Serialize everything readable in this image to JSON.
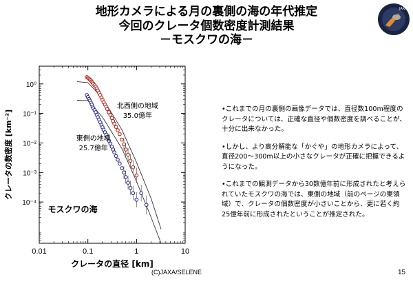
{
  "header": {
    "title_line_1": "地形カメラによる月の裏側の海の年代推定",
    "title_line_2": "今回のクレータ個数密度計測結果",
    "title_line_3": "－モスクワの海－"
  },
  "logo": {
    "text": "JAXA",
    "colors": {
      "ring": "#1a2440",
      "body": "#b9aa8f",
      "flame": "#e28a2c"
    }
  },
  "chart_data": {
    "type": "scatter",
    "title": "",
    "xlabel": "クレータの直径 [km]",
    "ylabel": "クレータの数密度 [km⁻²]",
    "x_scale": "log",
    "y_scale": "log",
    "xlim": [
      0.01,
      10
    ],
    "ylim": [
      4e-06,
      4
    ],
    "x_ticks": [
      0.01,
      0.1,
      1,
      10
    ],
    "x_tick_labels": [
      "0.01",
      "0.1",
      "1",
      "10"
    ],
    "y_ticks": [
      0.0001,
      0.001,
      0.01,
      0.1,
      1
    ],
    "y_tick_labels": [
      "10⁻⁴",
      "10⁻³",
      "10⁻²",
      "10⁻¹",
      "10⁰"
    ],
    "annotations": [
      {
        "id": "northwest",
        "line1": "北西側の地域",
        "line2": "35.0億年",
        "x": 1.05,
        "y": 0.15
      },
      {
        "id": "east",
        "line1": "東側の地域",
        "line2": "25.7億年",
        "x": 0.13,
        "y": 0.012
      }
    ],
    "region_label": {
      "text": "モスクワの海",
      "x": 0.015,
      "y": 4.5e-05
    },
    "series": [
      {
        "id": "northwest",
        "color": "#b32418",
        "x": [
          0.095,
          0.1,
          0.105,
          0.11,
          0.115,
          0.12,
          0.125,
          0.13,
          0.137,
          0.145,
          0.152,
          0.16,
          0.17,
          0.18,
          0.19,
          0.2,
          0.21,
          0.225,
          0.24,
          0.25,
          0.27,
          0.29,
          0.31,
          0.33,
          0.35,
          0.38,
          0.41,
          0.45,
          0.5,
          0.55,
          0.6,
          0.67,
          0.75,
          0.85,
          1.0
        ],
        "y": [
          1.7,
          1.6,
          1.5,
          1.4,
          1.3,
          1.2,
          1.1,
          1.0,
          0.9,
          0.8,
          0.7,
          0.6,
          0.5,
          0.42,
          0.35,
          0.29,
          0.24,
          0.2,
          0.17,
          0.14,
          0.11,
          0.09,
          0.07,
          0.055,
          0.045,
          0.035,
          0.027,
          0.02,
          0.013,
          0.009,
          0.006,
          0.004,
          0.0025,
          0.0015,
          0.0008
        ]
      },
      {
        "id": "east",
        "color": "#2b2f8c",
        "x": [
          0.095,
          0.1,
          0.105,
          0.11,
          0.115,
          0.12,
          0.125,
          0.13,
          0.137,
          0.145,
          0.152,
          0.16,
          0.17,
          0.18,
          0.19,
          0.2,
          0.21,
          0.225,
          0.24,
          0.25,
          0.27,
          0.29,
          0.31,
          0.33,
          0.35,
          0.38,
          0.41,
          0.45,
          0.5,
          0.55,
          0.6,
          0.67,
          0.75,
          0.85,
          1.0,
          1.25,
          1.6
        ],
        "y": [
          0.42,
          0.36,
          0.31,
          0.27,
          0.23,
          0.2,
          0.17,
          0.15,
          0.13,
          0.11,
          0.09,
          0.075,
          0.062,
          0.05,
          0.041,
          0.034,
          0.028,
          0.023,
          0.019,
          0.016,
          0.012,
          0.0095,
          0.0075,
          0.006,
          0.0048,
          0.0036,
          0.0027,
          0.002,
          0.0014,
          0.001,
          0.0007,
          0.00045,
          0.0003,
          0.0002,
          0.00012,
          0.0002,
          8e-05
        ]
      }
    ],
    "isochrons": [
      {
        "id": "upper",
        "x": [
          0.06,
          0.1,
          0.2,
          0.5,
          1.0,
          2.0,
          3.2
        ],
        "y": [
          1.2,
          1.1,
          0.33,
          0.028,
          0.0022,
          0.00013,
          1.2e-05
        ]
      },
      {
        "id": "lower",
        "x": [
          0.06,
          0.1,
          0.2,
          0.5,
          1.0,
          2.0,
          3.2
        ],
        "y": [
          0.28,
          0.27,
          0.075,
          0.0065,
          0.0005,
          3e-05,
          4e-06
        ]
      }
    ]
  },
  "text_panel": {
    "paragraphs": [
      "•これまでの月の裏側の画像データでは、直径数100m程度のクレータについては、正確な直径や個数密度を調べることが、十分に出来なかった。",
      "•しかし、より高分解能な「かぐや」の地形カメラによって、直径200～300m以上の小さなクレータが正確に把握できるようになった。",
      "•これまでの観測データから30数億年前に形成されたと考えられていたモスクワの海では、東側の地域（前のページの東領域）で、クレータの個数密度が小さいことから、更に若く約25億年前に形成されたということが推定された。"
    ]
  },
  "footer": {
    "credit": "(C)JAXA/SELENE",
    "page_number": "15"
  }
}
